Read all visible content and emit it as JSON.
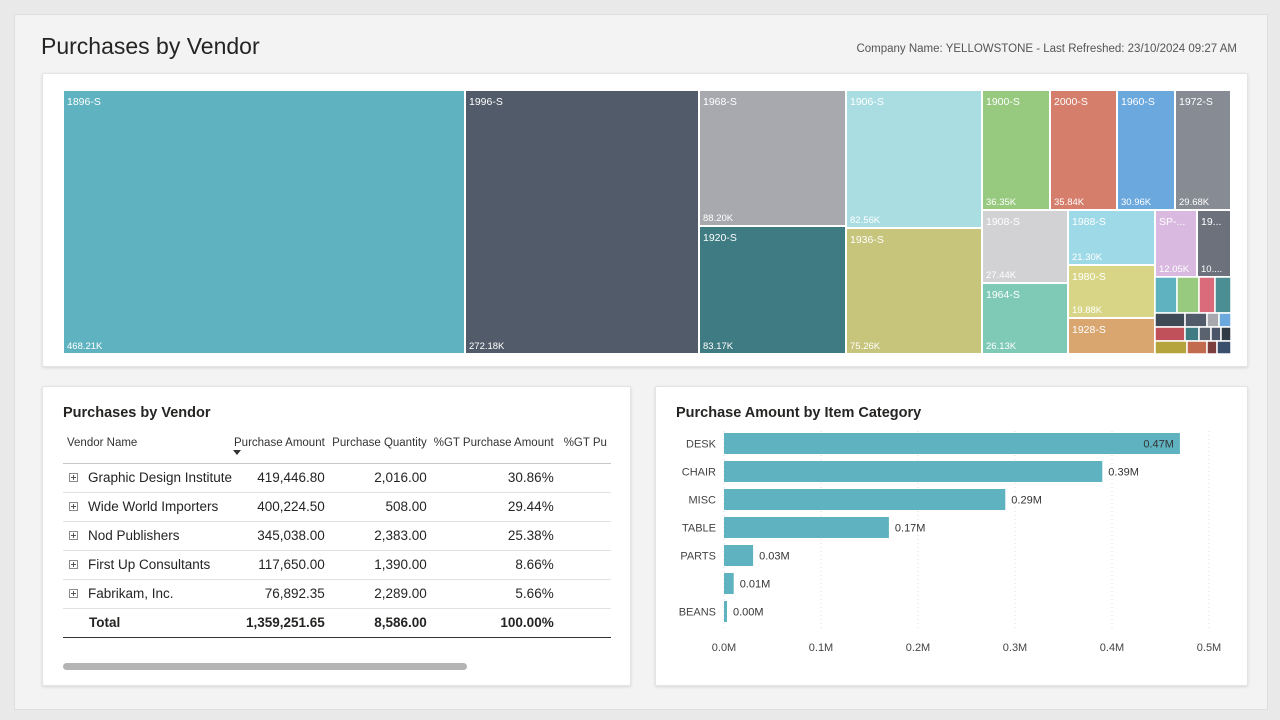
{
  "header": {
    "title": "Purchases by Vendor",
    "meta": "Company Name: YELLOWSTONE - Last Refreshed: 23/10/2024 09:27 AM"
  },
  "colors": {
    "teal": "#5fb3c0",
    "slate": "#525b69",
    "accent_bar": "#5fb3c0"
  },
  "treemap": {
    "tiles": [
      {
        "label": "1896-S",
        "value": "468.21K",
        "color": "#5fb3c0"
      },
      {
        "label": "1996-S",
        "value": "272.18K",
        "color": "#525b69"
      },
      {
        "label": "1968-S",
        "value": "88.20K",
        "color": "#a7a9ae"
      },
      {
        "label": "1920-S",
        "value": "83.17K",
        "color": "#3f7b82"
      },
      {
        "label": "1906-S",
        "value": "82.56K",
        "color": "#a9dde2"
      },
      {
        "label": "1936-S",
        "value": "75.26K",
        "color": "#c7c47b"
      },
      {
        "label": "1900-S",
        "value": "36.35K",
        "color": "#97c97f"
      },
      {
        "label": "2000-S",
        "value": "35.84K",
        "color": "#d57e6b"
      },
      {
        "label": "1960-S",
        "value": "30.96K",
        "color": "#6aa8dd"
      },
      {
        "label": "1972-S",
        "value": "29.68K",
        "color": "#868b94"
      },
      {
        "label": "1908-S",
        "value": "27.44K",
        "color": "#d2d2d4"
      },
      {
        "label": "1964-S",
        "value": "26.13K",
        "color": "#7fcab6"
      },
      {
        "label": "1988-S",
        "value": "21.30K",
        "color": "#9ed9e7"
      },
      {
        "label": "1980-S",
        "value": "19.88K",
        "color": "#d8d686"
      },
      {
        "label": "1928-S",
        "value": "",
        "color": "#d9a670"
      },
      {
        "label": "SP-...",
        "value": "12.05K",
        "color": "#d9b9e0"
      },
      {
        "label": "19...",
        "value": "10....",
        "color": "#6c717c"
      }
    ]
  },
  "vendor_table": {
    "title": "Purchases by Vendor",
    "columns": [
      "Vendor Name",
      "Purchase Amount",
      "Purchase Quantity",
      "%GT Purchase Amount",
      "%GT Pu"
    ],
    "rows": [
      {
        "name": "Graphic Design Institute",
        "amount": "419,446.80",
        "quantity": "2,016.00",
        "pct": "30.86%"
      },
      {
        "name": "Wide World Importers",
        "amount": "400,224.50",
        "quantity": "508.00",
        "pct": "29.44%"
      },
      {
        "name": "Nod Publishers",
        "amount": "345,038.00",
        "quantity": "2,383.00",
        "pct": "25.38%"
      },
      {
        "name": "First Up Consultants",
        "amount": "117,650.00",
        "quantity": "1,390.00",
        "pct": "8.66%"
      },
      {
        "name": "Fabrikam, Inc.",
        "amount": "76,892.35",
        "quantity": "2,289.00",
        "pct": "5.66%"
      }
    ],
    "total": {
      "name": "Total",
      "amount": "1,359,251.65",
      "quantity": "8,586.00",
      "pct": "100.00%"
    }
  },
  "chart_data": {
    "type": "bar",
    "orientation": "horizontal",
    "title": "Purchase Amount by Item Category",
    "categories": [
      "DESK",
      "CHAIR",
      "MISC",
      "TABLE",
      "PARTS",
      "",
      "BEANS"
    ],
    "values": [
      0.47,
      0.39,
      0.29,
      0.17,
      0.03,
      0.01,
      0.0
    ],
    "data_labels": [
      "0.47M",
      "0.39M",
      "0.29M",
      "0.17M",
      "0.03M",
      "0.01M",
      "0.00M"
    ],
    "xlim": [
      0,
      0.5
    ],
    "xticks": [
      "0.0M",
      "0.1M",
      "0.2M",
      "0.3M",
      "0.4M",
      "0.5M"
    ],
    "xlabel": "",
    "ylabel": "",
    "grid": true
  }
}
